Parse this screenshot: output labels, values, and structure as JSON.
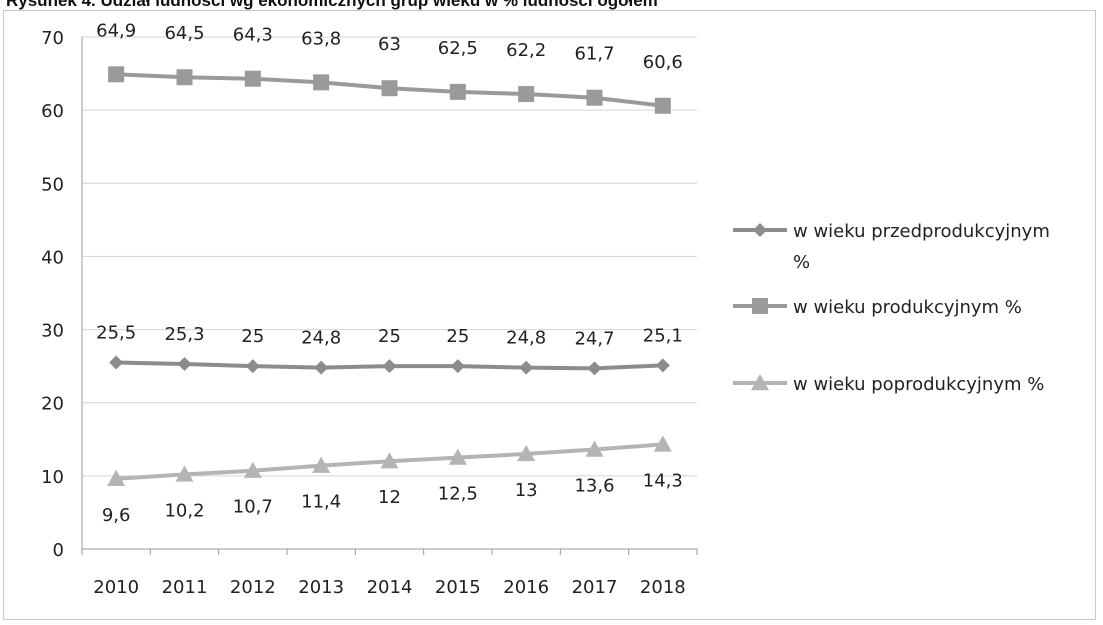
{
  "chart_data": {
    "type": "line",
    "title": "Rysunek 4. Udział ludności wg ekonomicznych grup wieku w % ludności ogółem",
    "categories": [
      "2010",
      "2011",
      "2012",
      "2013",
      "2014",
      "2015",
      "2016",
      "2017",
      "2018"
    ],
    "series": [
      {
        "name": "w wieku przedprodukcyjnym %",
        "marker": "diamond",
        "color": "#8c8c8c",
        "values": [
          25.5,
          25.3,
          25,
          24.8,
          25,
          25,
          24.8,
          24.7,
          25.1
        ],
        "labels": [
          "25,5",
          "25,3",
          "25",
          "24,8",
          "25",
          "25",
          "24,8",
          "24,7",
          "25,1"
        ]
      },
      {
        "name": "w wieku produkcyjnym %",
        "marker": "square",
        "color": "#9a9a9a",
        "values": [
          64.9,
          64.5,
          64.3,
          63.8,
          63,
          62.5,
          62.2,
          61.7,
          60.6
        ],
        "labels": [
          "64,9",
          "64,5",
          "64,3",
          "63,8",
          "63",
          "62,5",
          "62,2",
          "61,7",
          "60,6"
        ]
      },
      {
        "name": "w wieku poprodukcyjnym %",
        "marker": "triangle",
        "color": "#b4b4b4",
        "values": [
          9.6,
          10.2,
          10.7,
          11.4,
          12,
          12.5,
          13,
          13.6,
          14.3
        ],
        "labels": [
          "9,6",
          "10,2",
          "10,7",
          "11,4",
          "12",
          "12,5",
          "13",
          "13,6",
          "14,3"
        ]
      }
    ],
    "ylim": [
      0,
      70
    ],
    "yticks": [
      "0",
      "10",
      "20",
      "30",
      "40",
      "50",
      "60",
      "70"
    ],
    "grid": true,
    "legend": "right"
  }
}
